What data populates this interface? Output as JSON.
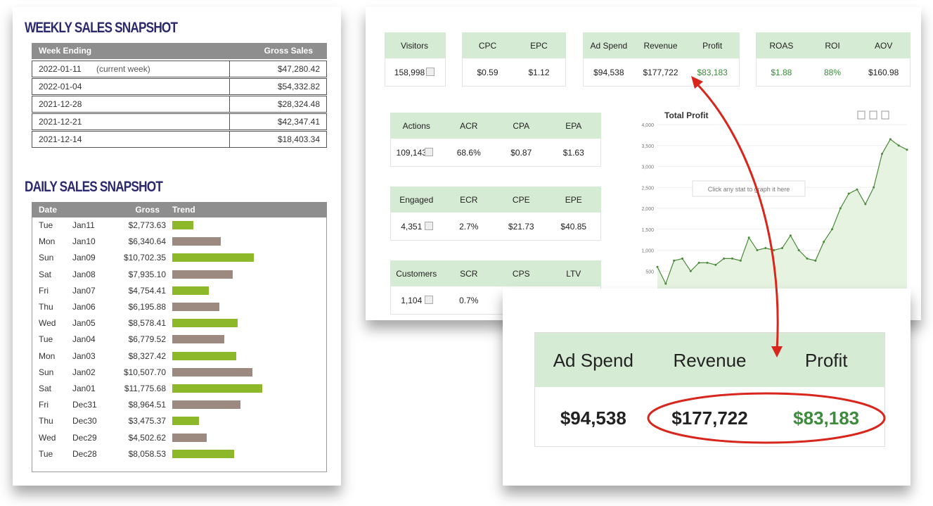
{
  "weekly": {
    "title": "WEEKLY SALES SNAPSHOT",
    "headers": [
      "Week Ending",
      "Gross Sales"
    ],
    "current_note": "(current week)",
    "rows": [
      [
        "2022-01-11",
        "$47,280.42"
      ],
      [
        "2022-01-04",
        "$54,332.82"
      ],
      [
        "2021-12-28",
        "$28,324.48"
      ],
      [
        "2021-12-21",
        "$42,347.41"
      ],
      [
        "2021-12-14",
        "$18,403.34"
      ]
    ]
  },
  "daily": {
    "title": "DAILY SALES SNAPSHOT",
    "headers": [
      "Date",
      "Gross",
      "Trend"
    ],
    "bar_colors": [
      "#8db82a",
      "#9c8a80"
    ],
    "rows": [
      {
        "day": "Tue",
        "date": "Jan11",
        "gross": "$2,773.63"
      },
      {
        "day": "Mon",
        "date": "Jan10",
        "gross": "$6,340.64"
      },
      {
        "day": "Sun",
        "date": "Jan09",
        "gross": "$10,702.35"
      },
      {
        "day": "Sat",
        "date": "Jan08",
        "gross": "$7,935.10"
      },
      {
        "day": "Fri",
        "date": "Jan07",
        "gross": "$4,754.41"
      },
      {
        "day": "Thu",
        "date": "Jan06",
        "gross": "$6,195.88"
      },
      {
        "day": "Wed",
        "date": "Jan05",
        "gross": "$8,578.41"
      },
      {
        "day": "Tue",
        "date": "Jan04",
        "gross": "$6,779.52"
      },
      {
        "day": "Mon",
        "date": "Jan03",
        "gross": "$8,327.42"
      },
      {
        "day": "Sun",
        "date": "Jan02",
        "gross": "$10,507.70"
      },
      {
        "day": "Sat",
        "date": "Jan01",
        "gross": "$11,775.68"
      },
      {
        "day": "Fri",
        "date": "Dec31",
        "gross": "$8,964.51"
      },
      {
        "day": "Thu",
        "date": "Dec30",
        "gross": "$3,475.37"
      },
      {
        "day": "Wed",
        "date": "Dec29",
        "gross": "$4,502.62"
      },
      {
        "day": "Tue",
        "date": "Dec28",
        "gross": "$8,058.53"
      }
    ]
  },
  "metric_groups": [
    {
      "metrics": [
        {
          "label": "Visitors",
          "value": "158,998"
        }
      ]
    },
    {
      "metrics": [
        {
          "label": "CPC",
          "value": "$0.59"
        },
        {
          "label": "EPC",
          "value": "$1.12"
        }
      ]
    },
    {
      "metrics": [
        {
          "label": "Ad Spend",
          "value": "$94,538"
        },
        {
          "label": "Revenue",
          "value": "$177,722"
        },
        {
          "label": "Profit",
          "value": "$83,183",
          "color": "#3c8c3c"
        }
      ]
    },
    {
      "metrics": [
        {
          "label": "ROAS",
          "value": "$1.88",
          "color": "#3c8c3c"
        },
        {
          "label": "ROI",
          "value": "88%",
          "color": "#3c8c3c"
        },
        {
          "label": "AOV",
          "value": "$160.98"
        }
      ]
    },
    {
      "metrics": [
        {
          "label": "Actions",
          "value": "109,143"
        },
        {
          "label": "ACR",
          "value": "68.6%"
        },
        {
          "label": "CPA",
          "value": "$0.87"
        },
        {
          "label": "EPA",
          "value": "$1.63"
        }
      ]
    },
    {
      "metrics": [
        {
          "label": "Engaged",
          "value": "4,351"
        },
        {
          "label": "ECR",
          "value": "2.7%"
        },
        {
          "label": "CPE",
          "value": "$21.73"
        },
        {
          "label": "EPE",
          "value": "$40.85"
        }
      ]
    },
    {
      "metrics": [
        {
          "label": "Customers",
          "value": "1,104"
        },
        {
          "label": "SCR",
          "value": "0.7%"
        },
        {
          "label": "CPS"
        },
        {
          "label": "LTV"
        }
      ]
    }
  ],
  "chart_data": {
    "type": "line",
    "title": "Total Profit",
    "annotation": "Click any stat to graph it here",
    "color": "#4a8a3a",
    "fill": "#e6f3e0",
    "values": [
      600,
      200,
      750,
      800,
      500,
      700,
      700,
      650,
      800,
      800,
      750,
      1300,
      1000,
      1050,
      1000,
      1050,
      1350,
      1000,
      800,
      750,
      1200,
      1500,
      2000,
      2350,
      2450,
      2100,
      2500,
      3300,
      3650,
      3500,
      3400
    ],
    "ylim": [
      0,
      4000
    ],
    "yticks": [
      500,
      {
        "value": 1000,
        "label": "1,000"
      },
      {
        "value": 1500,
        "label": "1,500"
      },
      {
        "value": 2000,
        "label": "2,000"
      },
      {
        "value": 2500,
        "label": "2,500"
      },
      {
        "value": 3000,
        "label": "3,000"
      },
      {
        "value": 3500,
        "label": "3,500"
      },
      {
        "value": 4000,
        "label": "4,000"
      }
    ],
    "grid": true
  }
}
